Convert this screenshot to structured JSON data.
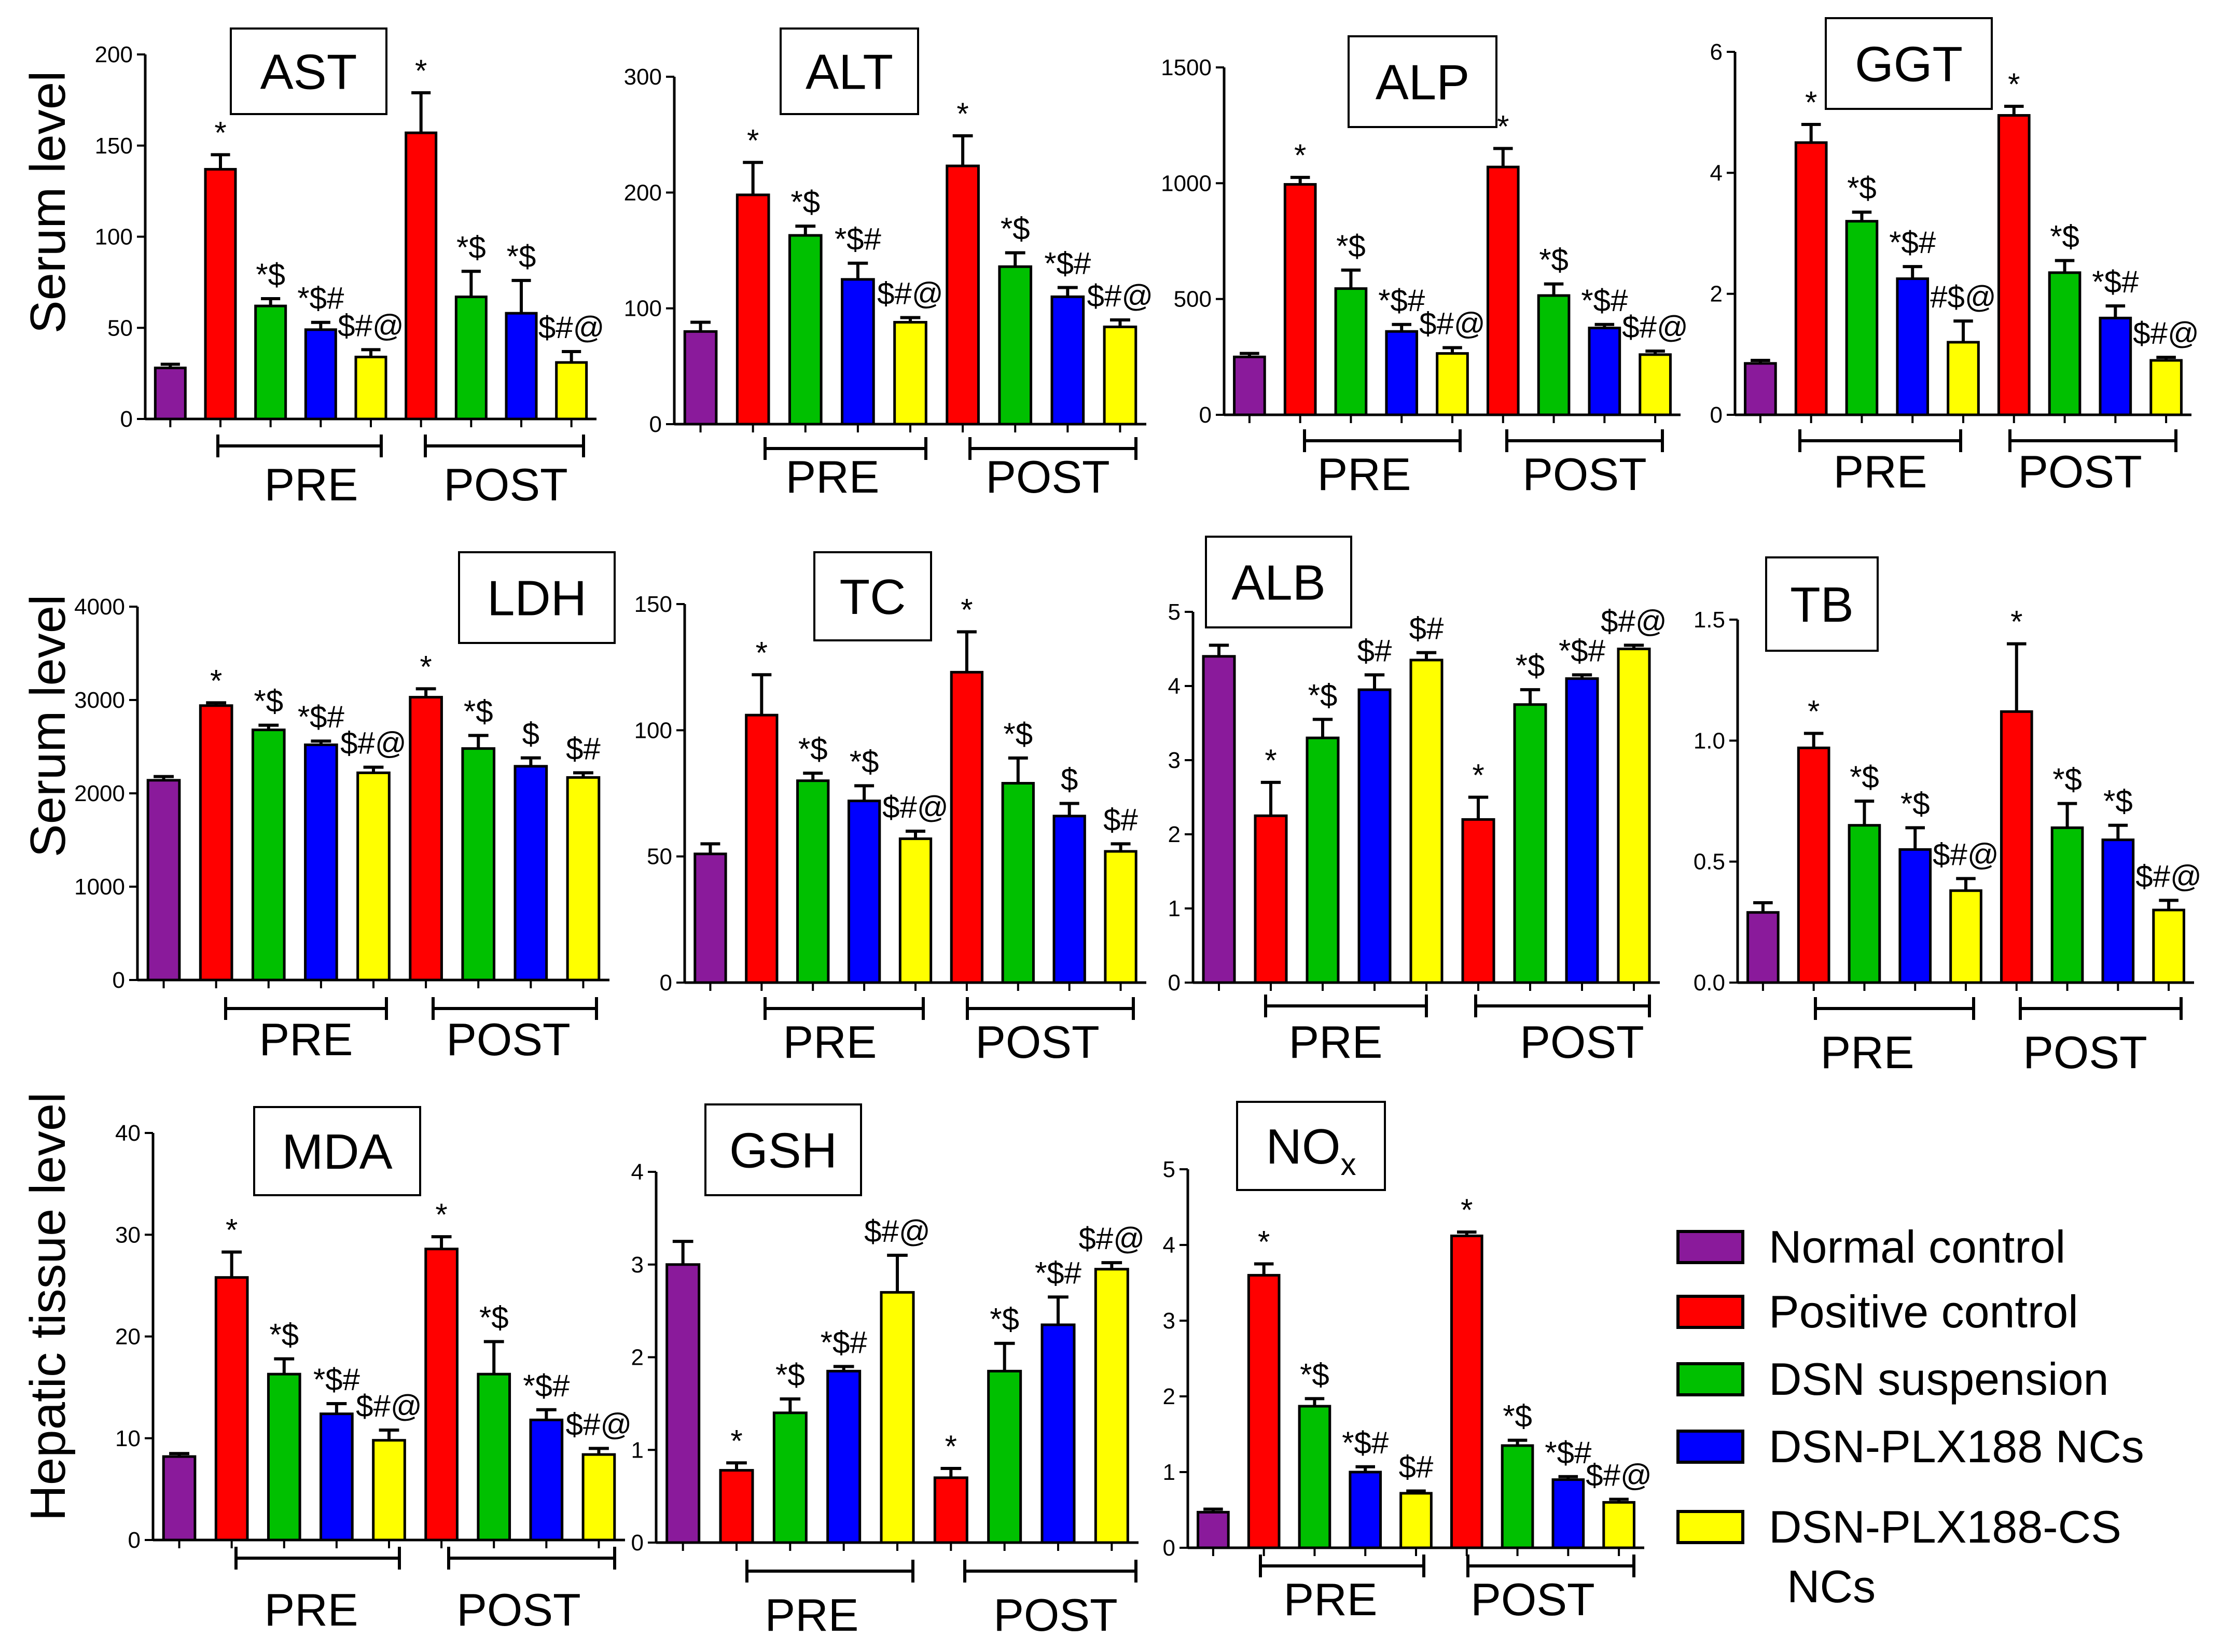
{
  "figure": {
    "row_labels": [
      "Serum level",
      "Serum level",
      "Hepatic tissue level"
    ]
  },
  "legend": [
    {
      "label": "Normal control",
      "color": "#8a1a9b"
    },
    {
      "label": "Positive control",
      "color": "#ff0000"
    },
    {
      "label": "DSN suspension",
      "color": "#00c000"
    },
    {
      "label": "DSN-PLX188 NCs",
      "color": "#0000ff"
    },
    {
      "label": "DSN-PLX188-CS",
      "label_line2": "NCs",
      "color": "#ffff00"
    }
  ],
  "chart_data": [
    {
      "type": "bar",
      "title": "AST",
      "group_labels": [
        "PRE",
        "POST"
      ],
      "ylim": [
        0,
        200
      ],
      "yticks": [
        "0",
        "50",
        "100",
        "150",
        "200"
      ],
      "values": [
        28,
        137,
        62,
        49,
        34,
        157,
        67,
        58,
        31
      ],
      "errors": [
        2,
        8,
        4,
        4,
        4,
        22,
        14,
        18,
        6
      ],
      "annotations": [
        "",
        "*",
        "*$",
        "*$#",
        "$#@",
        "*",
        "*$",
        "*$",
        "$#@"
      ]
    },
    {
      "type": "bar",
      "title": "ALT",
      "group_labels": [
        "PRE",
        "POST"
      ],
      "ylim": [
        0,
        300
      ],
      "yticks": [
        "0",
        "100",
        "200",
        "300"
      ],
      "values": [
        80,
        198,
        163,
        125,
        88,
        223,
        136,
        110,
        84
      ],
      "errors": [
        8,
        28,
        8,
        14,
        4,
        26,
        12,
        8,
        6
      ],
      "annotations": [
        "",
        "*",
        "*$",
        "*$#",
        "$#@",
        "*",
        "*$",
        "*$#",
        "$#@"
      ]
    },
    {
      "type": "bar",
      "title": "ALP",
      "group_labels": [
        "PRE",
        "POST"
      ],
      "ylim": [
        0,
        1500
      ],
      "yticks": [
        "0",
        "500",
        "1000",
        "1500"
      ],
      "values": [
        250,
        995,
        545,
        360,
        265,
        1070,
        515,
        375,
        260
      ],
      "errors": [
        15,
        30,
        80,
        30,
        25,
        80,
        50,
        15,
        15
      ],
      "annotations": [
        "",
        "*",
        "*$",
        "*$#",
        "$#@",
        "*",
        "*$",
        "*$#",
        "$#@"
      ]
    },
    {
      "type": "bar",
      "title": "GGT",
      "group_labels": [
        "PRE",
        "POST"
      ],
      "ylim": [
        0,
        6
      ],
      "yticks": [
        "0",
        "2",
        "4",
        "6"
      ],
      "values": [
        0.85,
        4.5,
        3.2,
        2.25,
        1.2,
        4.95,
        2.35,
        1.6,
        0.9
      ],
      "errors": [
        0.05,
        0.3,
        0.15,
        0.2,
        0.35,
        0.15,
        0.2,
        0.2,
        0.05
      ],
      "annotations": [
        "",
        "*",
        "*$",
        "*$#",
        "#$@",
        "*",
        "*$",
        "*$#",
        "$#@"
      ]
    },
    {
      "type": "bar",
      "title": "LDH",
      "group_labels": [
        "PRE",
        "POST"
      ],
      "ylim": [
        0,
        4000
      ],
      "yticks": [
        "0",
        "1000",
        "2000",
        "3000",
        "4000"
      ],
      "values": [
        2140,
        2940,
        2680,
        2520,
        2220,
        3030,
        2480,
        2290,
        2170
      ],
      "errors": [
        40,
        30,
        50,
        40,
        60,
        90,
        140,
        90,
        50
      ],
      "annotations": [
        "",
        "*",
        "*$",
        "*$#",
        "$#@",
        "*",
        "*$",
        "$",
        "$#"
      ]
    },
    {
      "type": "bar",
      "title": "TC",
      "group_labels": [
        "PRE",
        "POST"
      ],
      "ylim": [
        0,
        150
      ],
      "yticks": [
        "0",
        "50",
        "100",
        "150"
      ],
      "values": [
        51,
        106,
        80,
        72,
        57,
        123,
        79,
        66,
        52
      ],
      "errors": [
        4,
        16,
        3,
        6,
        3,
        16,
        10,
        5,
        3
      ],
      "annotations": [
        "",
        "*",
        "*$",
        "*$",
        "$#@",
        "*",
        "*$",
        "$",
        "$#"
      ]
    },
    {
      "type": "bar",
      "title": "ALB",
      "group_labels": [
        "PRE",
        "POST"
      ],
      "ylim": [
        0,
        5
      ],
      "yticks": [
        "0",
        "1",
        "2",
        "3",
        "4",
        "5"
      ],
      "values": [
        4.4,
        2.25,
        3.3,
        3.95,
        4.35,
        2.2,
        3.75,
        4.1,
        4.5
      ],
      "errors": [
        0.15,
        0.45,
        0.25,
        0.2,
        0.1,
        0.3,
        0.2,
        0.05,
        0.05
      ],
      "annotations": [
        "",
        "*",
        "*$",
        "$#",
        "$#",
        "*",
        "*$",
        "*$#",
        "$#@"
      ]
    },
    {
      "type": "bar",
      "title": "TB",
      "group_labels": [
        "PRE",
        "POST"
      ],
      "ylim": [
        0,
        1.5
      ],
      "yticks": [
        "0.0",
        "0.5",
        "1.0",
        "1.5"
      ],
      "values": [
        0.29,
        0.97,
        0.65,
        0.55,
        0.38,
        1.12,
        0.64,
        0.59,
        0.3
      ],
      "errors": [
        0.04,
        0.06,
        0.1,
        0.09,
        0.05,
        0.28,
        0.1,
        0.06,
        0.04
      ],
      "annotations": [
        "",
        "*",
        "*$",
        "*$",
        "$#@",
        "*",
        "*$",
        "*$",
        "$#@"
      ]
    },
    {
      "type": "bar",
      "title": "MDA",
      "group_labels": [
        "PRE",
        "POST"
      ],
      "ylim": [
        0,
        40
      ],
      "yticks": [
        "0",
        "10",
        "20",
        "30",
        "40"
      ],
      "values": [
        8.2,
        25.8,
        16.3,
        12.4,
        9.8,
        28.6,
        16.3,
        11.8,
        8.4
      ],
      "errors": [
        0.3,
        2.5,
        1.5,
        1,
        1,
        1.2,
        3.2,
        1,
        0.6
      ],
      "annotations": [
        "",
        "*",
        "*$",
        "*$#",
        "$#@",
        "*",
        "*$",
        "*$#",
        "$#@"
      ]
    },
    {
      "type": "bar",
      "title": "GSH",
      "group_labels": [
        "PRE",
        "POST"
      ],
      "ylim": [
        0,
        4
      ],
      "yticks": [
        "0",
        "1",
        "2",
        "3",
        "4"
      ],
      "values": [
        3.0,
        0.78,
        1.4,
        1.85,
        2.7,
        0.7,
        1.85,
        2.35,
        2.95
      ],
      "errors": [
        0.25,
        0.08,
        0.15,
        0.05,
        0.4,
        0.1,
        0.3,
        0.3,
        0.07
      ],
      "annotations": [
        "",
        "*",
        "*$",
        "*$#",
        "$#@",
        "*",
        "*$",
        "*$#",
        "$#@"
      ]
    },
    {
      "type": "bar",
      "title": "NO",
      "title_sub": "x",
      "group_labels": [
        "PRE",
        "POST"
      ],
      "ylim": [
        0,
        5
      ],
      "yticks": [
        "0",
        "1",
        "2",
        "3",
        "4",
        "5"
      ],
      "values": [
        0.47,
        3.6,
        1.87,
        1.0,
        0.72,
        4.12,
        1.35,
        0.9,
        0.6
      ],
      "errors": [
        0.04,
        0.15,
        0.1,
        0.07,
        0.03,
        0.05,
        0.07,
        0.04,
        0.04
      ],
      "annotations": [
        "",
        "*",
        "*$",
        "*$#",
        "$#",
        "*",
        "*$",
        "*$#",
        "$#@"
      ]
    }
  ]
}
